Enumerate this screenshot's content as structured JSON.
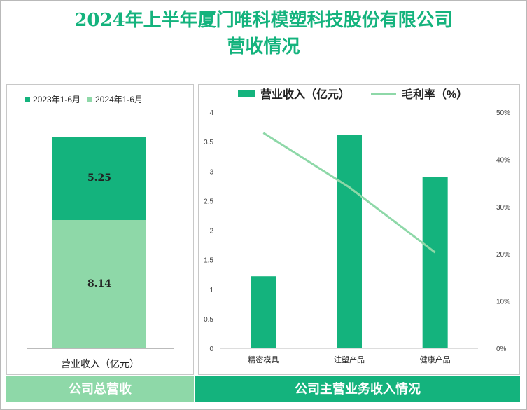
{
  "title_line1": "2024年上半年厦门唯科模塑科技股份有限公司",
  "title_line2": "营收情况",
  "colors": {
    "accent": "#14b37d",
    "light": "#8ed8a8"
  },
  "left_chart": {
    "legend": [
      "2023年1-6月",
      "2024年1-6月"
    ],
    "category": "营业收入（亿元）",
    "label_2023": "5.25",
    "label_2024": "8.14",
    "footer": "公司总营收"
  },
  "right_chart": {
    "legend_bar": "营业收入（亿元）",
    "legend_line": "毛利率（%）",
    "footer": "公司主营业务收入情况"
  },
  "chart_data": [
    {
      "type": "bar",
      "stacked": true,
      "categories": [
        "营业收入（亿元）"
      ],
      "series": [
        {
          "name": "2023年1-6月",
          "values": [
            5.25
          ]
        },
        {
          "name": "2024年1-6月",
          "values": [
            8.14
          ]
        }
      ],
      "legend": "top"
    },
    {
      "type": "bar",
      "categories": [
        "精密模具",
        "注塑产品",
        "健康产品"
      ],
      "series": [
        {
          "name": "营业收入（亿元）",
          "values": [
            1.22,
            3.62,
            2.9
          ],
          "axis": "left"
        },
        {
          "name": "毛利率（%）",
          "type": "line",
          "values": [
            45.6,
            34.1,
            20.3
          ],
          "axis": "right"
        }
      ],
      "ylim": [
        0,
        4
      ],
      "y_ticks": [
        "0",
        "0.5",
        "1",
        "1.5",
        "2",
        "2.5",
        "3",
        "3.5",
        "4"
      ],
      "y2lim": [
        0,
        50
      ],
      "y2_ticks": [
        "0%",
        "10%",
        "20%",
        "30%",
        "40%",
        "50%"
      ],
      "legend": "top",
      "grid": false
    }
  ]
}
